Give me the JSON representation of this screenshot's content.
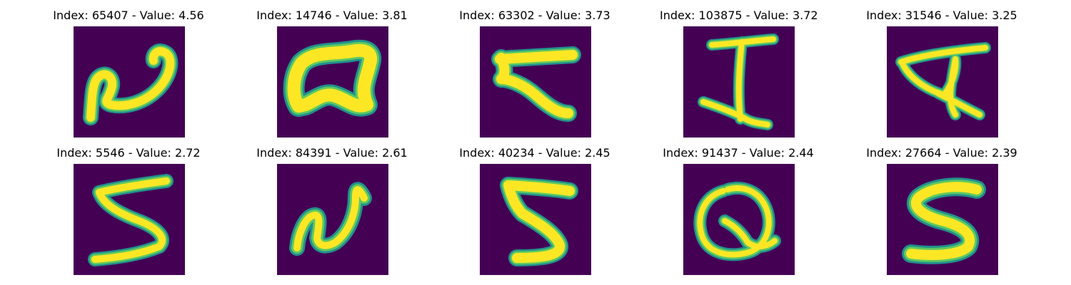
{
  "colors": {
    "background": "#440154",
    "stroke_edge": "#21918c",
    "stroke_mid": "#5ec962",
    "stroke_core": "#fde725"
  },
  "panels": [
    {
      "title": "Index: 65407 - Value: 4.56",
      "glyph": "N-like curve"
    },
    {
      "title": "Index: 14746 - Value: 3.81",
      "glyph": "A-like loop"
    },
    {
      "title": "Index: 63302 - Value: 3.73",
      "glyph": "7-like stroke"
    },
    {
      "title": "Index: 103875 - Value: 3.72",
      "glyph": "I-like letter"
    },
    {
      "title": "Index: 31546 - Value: 3.25",
      "glyph": "A-like letter"
    },
    {
      "title": "Index: 5546 - Value: 2.72",
      "glyph": "5-like stroke"
    },
    {
      "title": "Index: 84391 - Value: 2.61",
      "glyph": "N-like cursive"
    },
    {
      "title": "Index: 40234 - Value: 2.45",
      "glyph": "5-like stroke"
    },
    {
      "title": "Index: 91437 - Value: 2.44",
      "glyph": "Q-like loop"
    },
    {
      "title": "Index: 27664 - Value: 2.39",
      "glyph": "S-like stroke"
    }
  ]
}
